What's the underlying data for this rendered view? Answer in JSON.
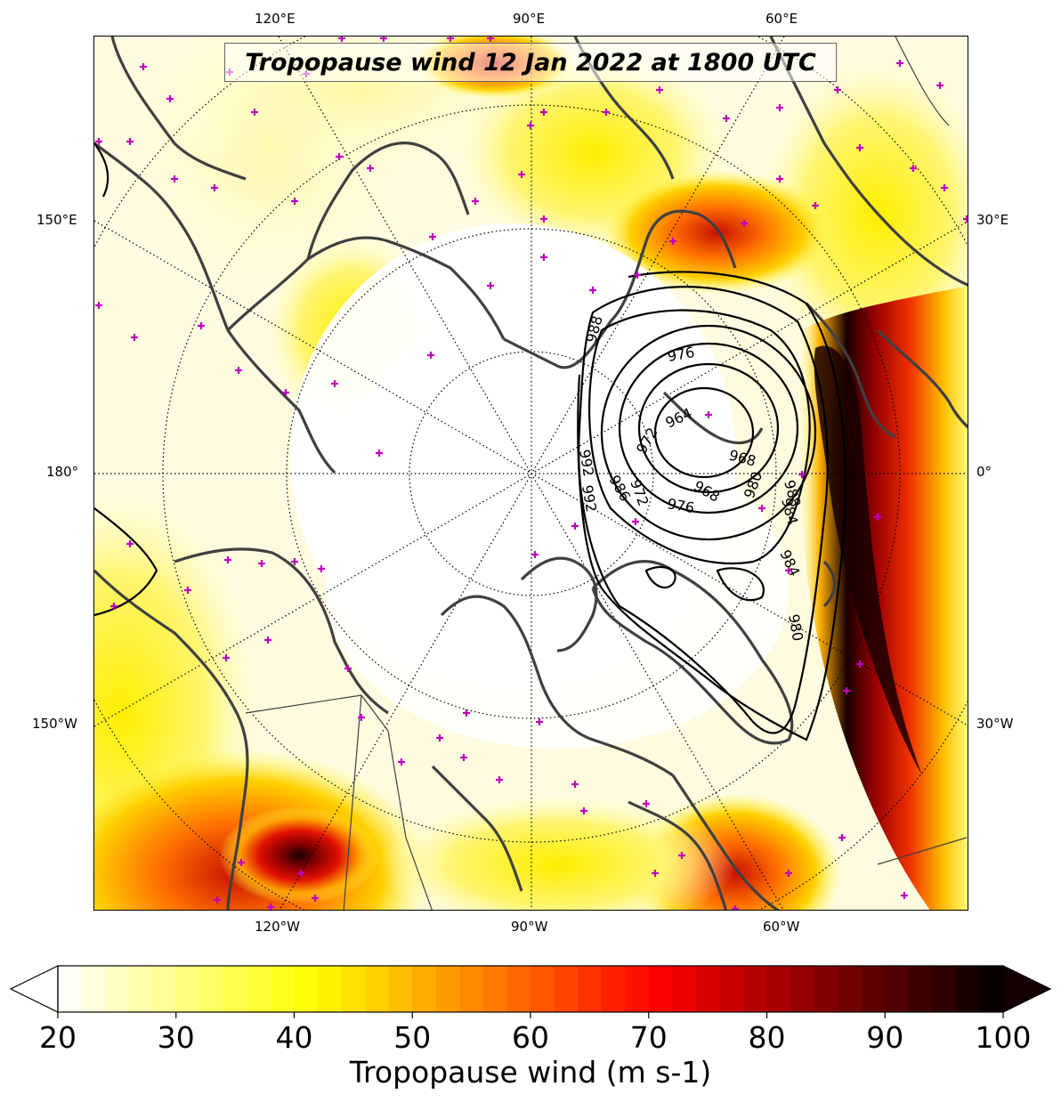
{
  "map": {
    "title": "Tropopause wind 12 Jan 2022 at 1800 UTC",
    "projection": "north-polar-stereographic",
    "top_longitude_labels": [
      "120°E",
      "90°E",
      "60°E"
    ],
    "bottom_longitude_labels": [
      "120°W",
      "90°W",
      "60°W"
    ],
    "left_longitude_labels": [
      "150°E",
      "180°",
      "150°W"
    ],
    "right_longitude_labels": [
      "30°E",
      "0°",
      "30°W"
    ],
    "contour_labels": [
      "976",
      "964",
      "968",
      "972",
      "968",
      "980",
      "984",
      "988",
      "992",
      "992",
      "988",
      "986",
      "972",
      "976",
      "984",
      "980"
    ],
    "colors": {
      "coastline": "#404040",
      "station_marker": "#c000c0",
      "contour": "#000000",
      "grid": "#000000"
    }
  },
  "colorbar": {
    "label": "Tropopause wind (m s-1)",
    "tick_labels": [
      "20",
      "30",
      "40",
      "50",
      "60",
      "70",
      "80",
      "90",
      "100"
    ],
    "min": 20,
    "max": 100,
    "extend": "both",
    "colormap": "hot_r"
  }
}
